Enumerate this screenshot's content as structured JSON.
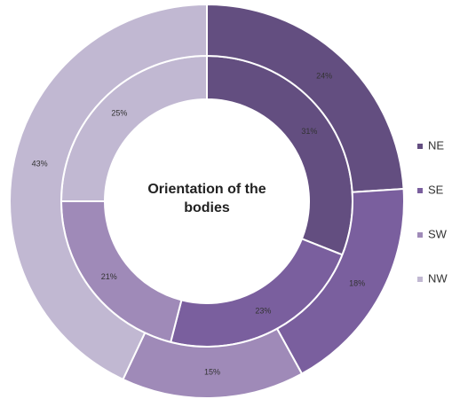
{
  "chart_data": {
    "type": "doughnut",
    "title": "Orientation of the bodies",
    "categories": [
      "NE",
      "SE",
      "SW",
      "NW"
    ],
    "colors": [
      "#634e80",
      "#7a5f9e",
      "#9f8ab8",
      "#c1b8d2"
    ],
    "series": [
      {
        "values": [
          31,
          23,
          21,
          25
        ],
        "value_labels": [
          "31%",
          "23%",
          "21%",
          "25%"
        ]
      },
      {
        "values": [
          24,
          18,
          15,
          43
        ],
        "value_labels": [
          "24%",
          "18%",
          "15%",
          "43%"
        ]
      }
    ],
    "legend": "right"
  }
}
